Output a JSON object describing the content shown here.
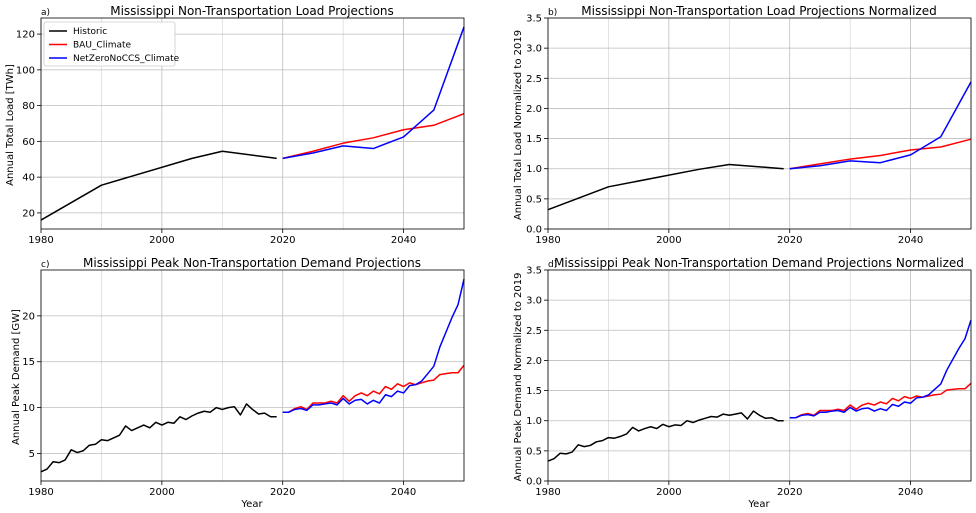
{
  "figure": {
    "xlabel": "Year",
    "panels": {
      "a": {
        "letter": "a)",
        "title": "Mississippi Non-Transportation Load Projections",
        "ylabel": "Annual Total Load [TWh]"
      },
      "b": {
        "letter": "b)",
        "title": "Mississippi Non-Transportation Load Projections Normalized",
        "ylabel": "Annual Total Load Normalized to 2019"
      },
      "c": {
        "letter": "c)",
        "title": "Mississippi Peak Non-Transportation Demand Projections",
        "ylabel": "Annual Peak Demand [GW]"
      },
      "d": {
        "letter": "d)",
        "title": "Mississippi Peak Non-Transportation Demand Projections Normalized",
        "ylabel": "Annual Peak Demand Normalized to 2019"
      }
    },
    "legend": {
      "historic": "Historic",
      "bau": "BAU_Climate",
      "nz": "NetZeroNoCCS_Climate"
    },
    "colors": {
      "historic": "#000000",
      "bau": "#ff0000",
      "nz": "#0000ff"
    }
  },
  "chart_data": [
    {
      "type": "line",
      "panel": "a",
      "title": "Mississippi Non-Transportation Load Projections",
      "xlabel": "",
      "ylabel": "Annual Total Load [TWh]",
      "xlim": [
        1980,
        2050
      ],
      "ylim": [
        11,
        129
      ],
      "xticks": [
        1980,
        2000,
        2020,
        2040
      ],
      "yticks": [
        20,
        40,
        60,
        80,
        100,
        120
      ],
      "grid": true,
      "legend": "top-left",
      "series": [
        {
          "name": "Historic",
          "x": [
            1980,
            1990,
            2005,
            2010,
            2019
          ],
          "y": [
            16,
            35.5,
            50.5,
            54.5,
            50.5
          ]
        },
        {
          "name": "BAU_Climate",
          "x": [
            2020,
            2025,
            2030,
            2035,
            2040,
            2045,
            2050
          ],
          "y": [
            50.5,
            54.5,
            59,
            62,
            66.5,
            69,
            75.5
          ]
        },
        {
          "name": "NetZeroNoCCS_Climate",
          "x": [
            2020,
            2025,
            2030,
            2035,
            2040,
            2045,
            2050
          ],
          "y": [
            50.5,
            53.5,
            57.5,
            56,
            62.5,
            77.5,
            124
          ]
        }
      ]
    },
    {
      "type": "line",
      "panel": "b",
      "title": "Mississippi Non-Transportation Load Projections Normalized",
      "xlabel": "",
      "ylabel": "Annual Total Load Normalized to 2019",
      "xlim": [
        1980,
        2050
      ],
      "ylim": [
        0,
        3.5
      ],
      "xticks": [
        1980,
        2000,
        2020,
        2040
      ],
      "yticks": [
        0.0,
        0.5,
        1.0,
        1.5,
        2.0,
        2.5,
        3.0,
        3.5
      ],
      "ytick_labels": [
        "0.0",
        "0.5",
        "1.0",
        "1.5",
        "2.0",
        "2.5",
        "3.0",
        "3.5"
      ],
      "grid": true,
      "series": [
        {
          "name": "Historic",
          "x": [
            1980,
            1990,
            2005,
            2010,
            2019
          ],
          "y": [
            0.32,
            0.7,
            0.99,
            1.07,
            1.0
          ]
        },
        {
          "name": "BAU_Climate",
          "x": [
            2020,
            2025,
            2030,
            2035,
            2040,
            2045,
            2050
          ],
          "y": [
            1.0,
            1.08,
            1.16,
            1.22,
            1.31,
            1.36,
            1.49
          ]
        },
        {
          "name": "NetZeroNoCCS_Climate",
          "x": [
            2020,
            2025,
            2030,
            2035,
            2040,
            2045,
            2050
          ],
          "y": [
            1.0,
            1.05,
            1.13,
            1.1,
            1.23,
            1.53,
            2.44
          ]
        }
      ]
    },
    {
      "type": "line",
      "panel": "c",
      "title": "Mississippi Peak Non-Transportation Demand Projections",
      "xlabel": "Year",
      "ylabel": "Annual Peak Demand [GW]",
      "xlim": [
        1980,
        2050
      ],
      "ylim": [
        2,
        25
      ],
      "xticks": [
        1980,
        2000,
        2020,
        2040
      ],
      "yticks": [
        5,
        10,
        15,
        20
      ],
      "grid": true,
      "series": [
        {
          "name": "Historic",
          "x": [
            1980,
            1981,
            1982,
            1983,
            1984,
            1985,
            1986,
            1987,
            1988,
            1989,
            1990,
            1991,
            1992,
            1993,
            1994,
            1995,
            1996,
            1997,
            1998,
            1999,
            2000,
            2001,
            2002,
            2003,
            2004,
            2005,
            2006,
            2007,
            2008,
            2009,
            2010,
            2011,
            2012,
            2013,
            2014,
            2015,
            2016,
            2017,
            2018,
            2019
          ],
          "y": [
            3.0,
            3.3,
            4.1,
            4.0,
            4.3,
            5.4,
            5.1,
            5.3,
            5.9,
            6.0,
            6.5,
            6.4,
            6.7,
            7.0,
            8.0,
            7.5,
            7.8,
            8.1,
            7.8,
            8.4,
            8.1,
            8.4,
            8.3,
            9.0,
            8.7,
            9.1,
            9.4,
            9.6,
            9.5,
            10.0,
            9.8,
            10.0,
            10.1,
            9.2,
            10.4,
            9.8,
            9.3,
            9.4,
            9.0,
            9.0
          ]
        },
        {
          "name": "BAU_Climate",
          "x": [
            2020,
            2021,
            2022,
            2023,
            2024,
            2025,
            2026,
            2027,
            2028,
            2029,
            2030,
            2031,
            2032,
            2033,
            2034,
            2035,
            2036,
            2037,
            2038,
            2039,
            2040,
            2041,
            2042,
            2043,
            2044,
            2045,
            2046,
            2047,
            2048,
            2049,
            2050
          ],
          "y": [
            9.5,
            9.5,
            9.9,
            10.1,
            9.8,
            10.5,
            10.5,
            10.5,
            10.7,
            10.5,
            11.3,
            10.7,
            11.3,
            11.6,
            11.3,
            11.8,
            11.5,
            12.3,
            12.0,
            12.6,
            12.3,
            12.7,
            12.5,
            12.7,
            12.9,
            13.0,
            13.6,
            13.7,
            13.8,
            13.8,
            14.6
          ]
        },
        {
          "name": "NetZeroNoCCS_Climate",
          "x": [
            2020,
            2021,
            2022,
            2023,
            2024,
            2025,
            2026,
            2027,
            2028,
            2029,
            2030,
            2031,
            2032,
            2033,
            2034,
            2035,
            2036,
            2037,
            2038,
            2039,
            2040,
            2041,
            2042,
            2043,
            2044,
            2045,
            2046,
            2047,
            2048,
            2049,
            2050
          ],
          "y": [
            9.5,
            9.5,
            9.8,
            9.9,
            9.7,
            10.3,
            10.3,
            10.4,
            10.5,
            10.3,
            11.0,
            10.4,
            10.8,
            10.9,
            10.4,
            10.8,
            10.5,
            11.4,
            11.2,
            11.8,
            11.6,
            12.4,
            12.5,
            12.9,
            13.7,
            14.5,
            16.6,
            18.2,
            19.8,
            21.2,
            24.0
          ]
        }
      ]
    },
    {
      "type": "line",
      "panel": "d",
      "title": "Mississippi Peak Non-Transportation Demand Projections Normalized",
      "xlabel": "Year",
      "ylabel": "Annual Peak Demand Normalized to 2019",
      "xlim": [
        1980,
        2050
      ],
      "ylim": [
        0,
        3.5
      ],
      "xticks": [
        1980,
        2000,
        2020,
        2040
      ],
      "yticks": [
        0.0,
        0.5,
        1.0,
        1.5,
        2.0,
        2.5,
        3.0,
        3.5
      ],
      "ytick_labels": [
        "0.0",
        "0.5",
        "1.0",
        "1.5",
        "2.0",
        "2.5",
        "3.0",
        "3.5"
      ],
      "grid": true,
      "series": [
        {
          "name": "Historic",
          "x": [
            1980,
            1981,
            1982,
            1983,
            1984,
            1985,
            1986,
            1987,
            1988,
            1989,
            1990,
            1991,
            1992,
            1993,
            1994,
            1995,
            1996,
            1997,
            1998,
            1999,
            2000,
            2001,
            2002,
            2003,
            2004,
            2005,
            2006,
            2007,
            2008,
            2009,
            2010,
            2011,
            2012,
            2013,
            2014,
            2015,
            2016,
            2017,
            2018,
            2019
          ],
          "y": [
            0.33,
            0.37,
            0.46,
            0.45,
            0.48,
            0.6,
            0.57,
            0.59,
            0.65,
            0.67,
            0.72,
            0.71,
            0.74,
            0.78,
            0.89,
            0.83,
            0.87,
            0.9,
            0.87,
            0.94,
            0.9,
            0.93,
            0.92,
            1.0,
            0.97,
            1.01,
            1.04,
            1.07,
            1.06,
            1.11,
            1.09,
            1.11,
            1.13,
            1.03,
            1.16,
            1.09,
            1.04,
            1.05,
            1.0,
            1.0
          ]
        },
        {
          "name": "BAU_Climate",
          "x": [
            2020,
            2021,
            2022,
            2023,
            2024,
            2025,
            2026,
            2027,
            2028,
            2029,
            2030,
            2031,
            2032,
            2033,
            2034,
            2035,
            2036,
            2037,
            2038,
            2039,
            2040,
            2041,
            2042,
            2043,
            2044,
            2045,
            2046,
            2047,
            2048,
            2049,
            2050
          ],
          "y": [
            1.05,
            1.05,
            1.1,
            1.12,
            1.09,
            1.17,
            1.17,
            1.17,
            1.19,
            1.17,
            1.26,
            1.19,
            1.26,
            1.29,
            1.26,
            1.31,
            1.28,
            1.37,
            1.33,
            1.4,
            1.37,
            1.41,
            1.39,
            1.41,
            1.43,
            1.44,
            1.51,
            1.52,
            1.53,
            1.53,
            1.62
          ]
        },
        {
          "name": "NetZeroNoCCS_Climate",
          "x": [
            2020,
            2021,
            2022,
            2023,
            2024,
            2025,
            2026,
            2027,
            2028,
            2029,
            2030,
            2031,
            2032,
            2033,
            2034,
            2035,
            2036,
            2037,
            2038,
            2039,
            2040,
            2041,
            2042,
            2043,
            2044,
            2045,
            2046,
            2047,
            2048,
            2049,
            2050
          ],
          "y": [
            1.05,
            1.05,
            1.09,
            1.1,
            1.08,
            1.14,
            1.14,
            1.16,
            1.17,
            1.14,
            1.22,
            1.16,
            1.2,
            1.21,
            1.16,
            1.2,
            1.17,
            1.27,
            1.24,
            1.31,
            1.29,
            1.38,
            1.39,
            1.43,
            1.52,
            1.61,
            1.84,
            2.02,
            2.2,
            2.36,
            2.67
          ]
        }
      ]
    }
  ]
}
